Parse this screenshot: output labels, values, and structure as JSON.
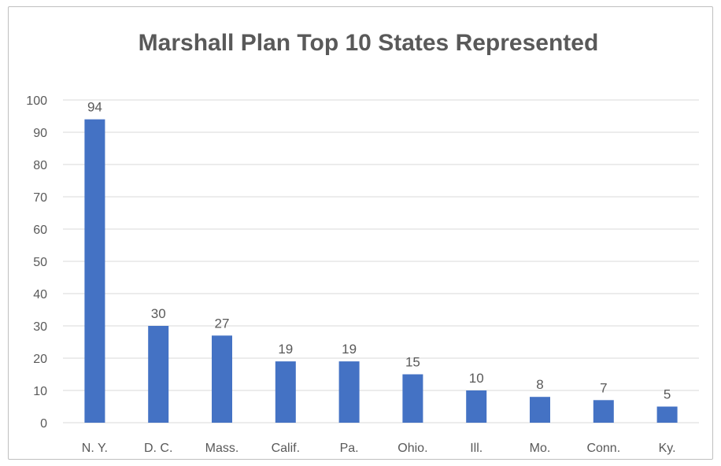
{
  "chart_data": {
    "type": "bar",
    "title": "Marshall Plan Top 10 States Represented",
    "xlabel": "",
    "ylabel": "",
    "categories": [
      "N. Y.",
      "D. C.",
      "Mass.",
      "Calif.",
      "Pa.",
      "Ohio.",
      "Ill.",
      "Mo.",
      "Conn.",
      "Ky."
    ],
    "values": [
      94,
      30,
      27,
      19,
      19,
      15,
      10,
      8,
      7,
      5
    ],
    "data_labels": [
      "94",
      "30",
      "27",
      "19",
      "19",
      "15",
      "10",
      "8",
      "7",
      "5"
    ],
    "ylim": [
      0,
      100
    ],
    "yticks": [
      0,
      10,
      20,
      30,
      40,
      50,
      60,
      70,
      80,
      90,
      100
    ],
    "ytick_labels": [
      "0",
      "10",
      "20",
      "30",
      "40",
      "50",
      "60",
      "70",
      "80",
      "90",
      "100"
    ],
    "grid": "horizontal",
    "legend": "none",
    "bar_color": "#4472c4",
    "gridline_color": "#d9d9d9"
  }
}
